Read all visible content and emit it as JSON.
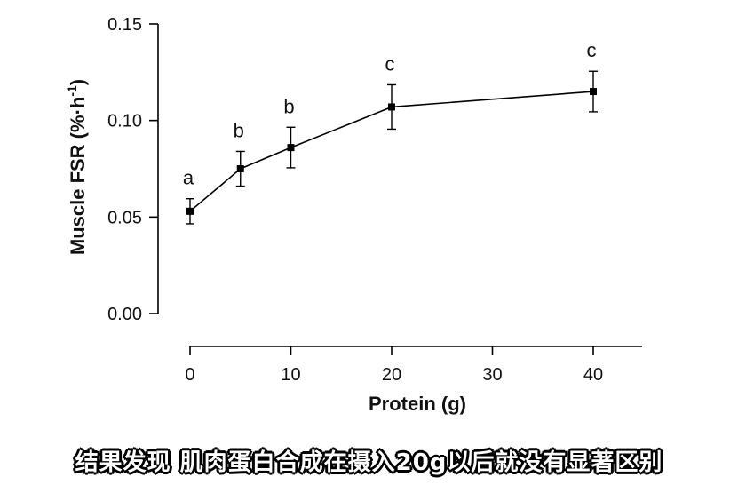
{
  "chart_data": {
    "type": "line",
    "xlabel": "Protein (g)",
    "ylabel_main": "Muscle FSR (%·h",
    "ylabel_sup": "-1",
    "ylabel_close": ")",
    "x_ticks": [
      0,
      10,
      20,
      30,
      40
    ],
    "x_tick_labels": [
      "0",
      "10",
      "20",
      "30",
      "40"
    ],
    "y_ticks": [
      0.0,
      0.05,
      0.1,
      0.15
    ],
    "y_tick_labels": [
      "0.00",
      "0.05",
      "0.10",
      "0.15"
    ],
    "xlim": [
      0,
      45
    ],
    "ylim": [
      0,
      0.15
    ],
    "grid": false,
    "x_scale": "categorical-spaced",
    "points": [
      {
        "x": 0,
        "y": 0.053,
        "err": 0.0065,
        "label": "a"
      },
      {
        "x": 5,
        "y": 0.075,
        "err": 0.009,
        "label": "b"
      },
      {
        "x": 10,
        "y": 0.086,
        "err": 0.0105,
        "label": "b"
      },
      {
        "x": 20,
        "y": 0.107,
        "err": 0.0115,
        "label": "c"
      },
      {
        "x": 40,
        "y": 0.115,
        "err": 0.0105,
        "label": "c"
      }
    ]
  },
  "caption": "结果发现 肌肉蛋白合成在摄入20g以后就没有显著区别"
}
